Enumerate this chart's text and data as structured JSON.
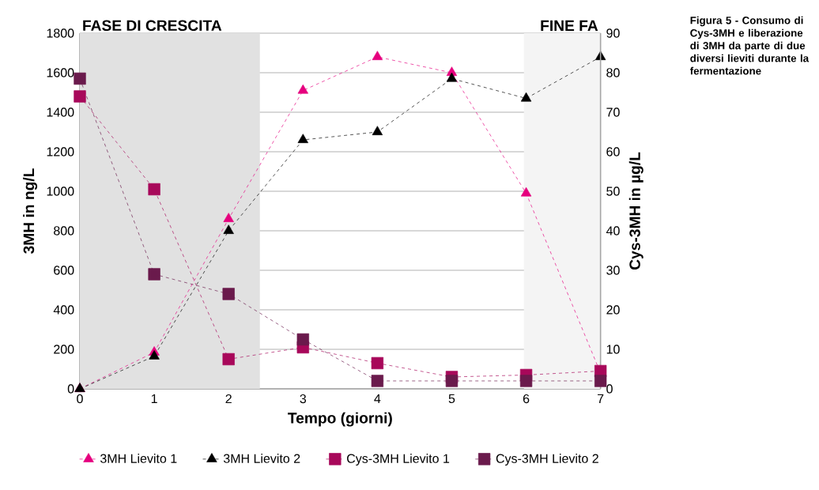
{
  "chart_data": {
    "type": "line",
    "title": "Figura 5 - Consumo di Cys-3MH e liberazione di 3MH da parte di due diversi lieviti durante la fermentazione",
    "xlabel": "Tempo (giorni)",
    "ylabel": "3MH in ng/L",
    "y2label": "Cys-3MH in µg/L",
    "x": [
      0,
      1,
      2,
      3,
      4,
      5,
      6,
      7
    ],
    "xlim": [
      0,
      7
    ],
    "xticks": [
      0,
      1,
      2,
      3,
      4,
      5,
      6,
      7
    ],
    "ylim": [
      0,
      1800
    ],
    "yticks": [
      0,
      200,
      400,
      600,
      800,
      1000,
      1200,
      1400,
      1600,
      1800
    ],
    "y2lim": [
      0,
      90
    ],
    "y2ticks": [
      0,
      10,
      20,
      30,
      40,
      50,
      60,
      70,
      80,
      90
    ],
    "grid": "y",
    "legend": "bottom",
    "line_style": "dashed",
    "bands": [
      {
        "axis": "x",
        "from": 0,
        "to": 2.42,
        "label": "FASE DI CRESCITA",
        "color": "#e1e1e1"
      },
      {
        "axis": "x",
        "from": 5.97,
        "to": 7,
        "label": "FINE FA",
        "color": "#f4f4f4"
      }
    ],
    "series": [
      {
        "name": "3MH Lievito 1",
        "color": "#e6007e",
        "marker": "triangle",
        "values": [
          0,
          185,
          860,
          1510,
          1680,
          1600,
          990,
          80
        ]
      },
      {
        "name": "3MH Lievito 2",
        "color": "#000000",
        "marker": "triangle",
        "values": [
          0,
          165,
          800,
          1260,
          1300,
          1570,
          1470,
          1680
        ]
      },
      {
        "name": "Cys-3MH Lievito 1",
        "color": "#a8085a",
        "marker": "square",
        "axis": "y2",
        "values": [
          74,
          50.5,
          7.5,
          10.5,
          6.5,
          3,
          3.5,
          4.5
        ]
      },
      {
        "name": "Cys-3MH Lievito 2",
        "color": "#6a1a4c",
        "marker": "square",
        "axis": "y2",
        "values": [
          78.5,
          29,
          24,
          12.5,
          2,
          2,
          2,
          2
        ]
      }
    ]
  }
}
